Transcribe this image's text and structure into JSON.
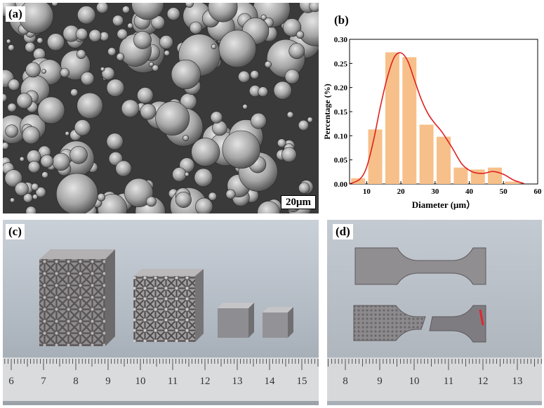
{
  "panels": {
    "a": {
      "label": "(a)",
      "scale_bar": "20μm"
    },
    "b": {
      "label": "(b)"
    },
    "c": {
      "label": "(c)"
    },
    "d": {
      "label": "(d)"
    }
  },
  "chart_data": {
    "type": "bar",
    "xlabel": "Diameter (μm）",
    "ylabel": "Percentage (%)",
    "xlim": [
      5,
      60
    ],
    "ylim": [
      0,
      0.3
    ],
    "x_ticks": [
      10,
      20,
      30,
      40,
      50,
      60
    ],
    "y_ticks": [
      "0.00",
      "0.05",
      "0.10",
      "0.15",
      "0.20",
      "0.25",
      "0.30"
    ],
    "bin_centers": [
      7.5,
      12.5,
      17.5,
      22.5,
      27.5,
      32.5,
      37.5,
      42.5,
      47.5,
      52.5
    ],
    "values": [
      0.012,
      0.113,
      0.273,
      0.263,
      0.123,
      0.098,
      0.034,
      0.03,
      0.034,
      0.005
    ],
    "kde_curve": {
      "x": [
        5,
        8,
        10,
        12,
        14,
        16,
        18,
        20,
        22,
        24,
        26,
        28,
        30,
        32,
        35,
        38,
        41,
        44,
        47,
        50,
        53,
        56
      ],
      "y": [
        0.0,
        0.01,
        0.035,
        0.09,
        0.16,
        0.22,
        0.262,
        0.272,
        0.255,
        0.215,
        0.175,
        0.145,
        0.125,
        0.108,
        0.075,
        0.04,
        0.025,
        0.022,
        0.026,
        0.02,
        0.008,
        0.001
      ]
    },
    "colors": {
      "bar": "#f7c08a",
      "curve": "#e02020"
    }
  },
  "rulers": {
    "c": [
      "6",
      "7",
      "8",
      "9",
      "10",
      "11",
      "12",
      "13",
      "14",
      "15"
    ],
    "d": [
      "8",
      "9",
      "10",
      "11",
      "12",
      "13"
    ]
  }
}
